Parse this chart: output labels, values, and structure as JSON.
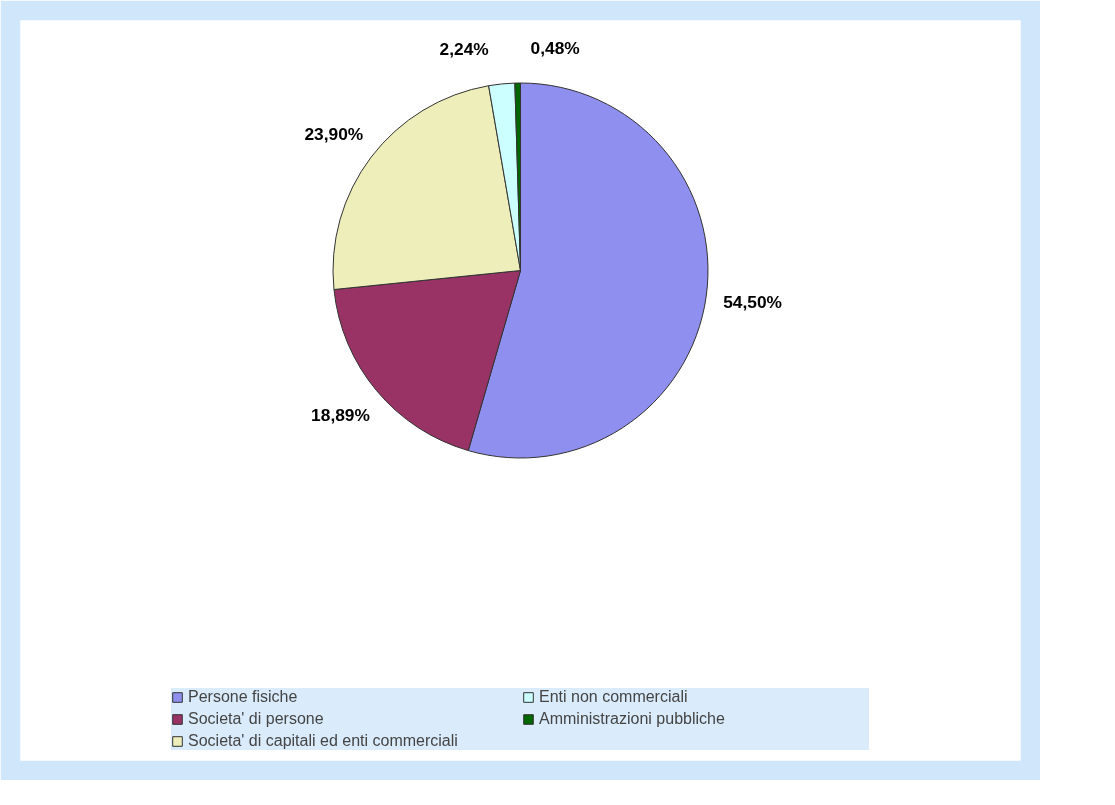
{
  "chart_data": {
    "type": "pie",
    "categories": [
      "Persone fisiche",
      "Societa' di persone",
      "Societa' di capitali ed enti commerciali",
      "Enti non commerciali",
      "Amministrazioni pubbliche"
    ],
    "values": [
      54.5,
      18.89,
      23.9,
      2.24,
      0.48
    ],
    "colors": [
      "#8f8fef",
      "#993366",
      "#eeeebb",
      "#ccffff",
      "#006600"
    ],
    "value_labels": [
      "54,50%",
      "18,89%",
      "23,90%",
      "2,24%",
      "0,48%"
    ],
    "legend": "bottom"
  }
}
